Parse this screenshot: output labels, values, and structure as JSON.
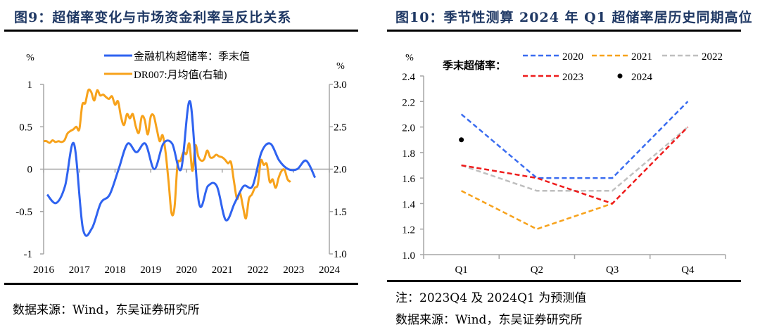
{
  "left": {
    "title": "图9：超储率变化与市场资金利率呈反比关系",
    "source": "数据来源：Wind，东吴证券研究所"
  },
  "right": {
    "title": "图10：季节性测算 2024 年 Q1 超储率居历史同期高位",
    "note": "注：2023Q4 及 2024Q1 为预测值",
    "source": "数据来源：Wind，东吴证券研究所"
  },
  "chart_data": [
    {
      "type": "line",
      "title": "超储率变化与市场资金利率呈反比关系",
      "ylabel": "%",
      "y2label": "%",
      "ylim": [
        -1,
        1
      ],
      "y2lim": [
        1.0,
        3.0
      ],
      "xlim": [
        2016,
        2024
      ],
      "yticks": [
        "1",
        "0.5",
        "0",
        "-0.5",
        "-1"
      ],
      "y2ticks": [
        "3.0",
        "2.5",
        "2.0",
        "1.5",
        "1.0"
      ],
      "xticks": [
        "2016",
        "2017",
        "2018",
        "2019",
        "2020",
        "2021",
        "2022",
        "2023",
        "2024"
      ],
      "grid": false,
      "legend": "top-center",
      "series": [
        {
          "name": "金融机构超储率：季末值",
          "axis": "left",
          "color": "#2f63f0",
          "x": [
            2016.1,
            2016.35,
            2016.6,
            2016.85,
            2017.1,
            2017.35,
            2017.6,
            2017.85,
            2018.1,
            2018.35,
            2018.6,
            2018.85,
            2019.1,
            2019.35,
            2019.6,
            2019.85,
            2020.1,
            2020.35,
            2020.6,
            2020.85,
            2021.1,
            2021.35,
            2021.6,
            2021.85,
            2022.1,
            2022.35,
            2022.6,
            2022.85,
            2023.1,
            2023.35,
            2023.6
          ],
          "values": [
            -0.3,
            -0.4,
            -0.2,
            0.3,
            -0.7,
            -0.7,
            -0.4,
            -0.3,
            0.0,
            0.3,
            0.2,
            0.3,
            0.0,
            0.3,
            0.3,
            0.0,
            0.8,
            -0.4,
            -0.2,
            -0.2,
            -0.6,
            -0.4,
            -0.2,
            -0.2,
            0.2,
            0.3,
            0.1,
            0.0,
            0.0,
            0.1,
            -0.1
          ]
        },
        {
          "name": "DR007:月均值(右轴)",
          "axis": "right",
          "color": "#f7a21b",
          "x_start": 2016.0,
          "x_step": 0.0833,
          "values": [
            2.33,
            2.33,
            2.31,
            2.34,
            2.32,
            2.33,
            2.32,
            2.34,
            2.42,
            2.45,
            2.47,
            2.5,
            2.47,
            2.76,
            2.78,
            2.93,
            2.91,
            2.81,
            2.93,
            2.87,
            2.88,
            2.85,
            2.83,
            2.86,
            2.76,
            2.8,
            2.62,
            2.52,
            2.65,
            2.6,
            2.65,
            2.5,
            2.43,
            2.62,
            2.58,
            2.41,
            2.62,
            2.63,
            2.48,
            2.33,
            2.4,
            2.2,
            1.85,
            1.48,
            1.55,
            2.05,
            2.1,
            2.2,
            2.18,
            2.3,
            1.98,
            2.28,
            2.15,
            2.1,
            2.12,
            2.22,
            2.14,
            2.14,
            2.17,
            2.15,
            2.14,
            2.11,
            2.07,
            2.08,
            1.85,
            1.65,
            1.72,
            1.56,
            1.42,
            1.65,
            1.7,
            1.78,
            1.82,
            2.1,
            2.05,
            2.06,
            1.85,
            1.88,
            1.78,
            1.9,
            1.98,
            1.99,
            1.88,
            1.85
          ]
        }
      ]
    },
    {
      "type": "line",
      "title": "季节性测算 2024 年 Q1 超储率居历史同期高位",
      "ylabel": "%",
      "ylim": [
        1.0,
        2.4
      ],
      "yticks": [
        "2.4",
        "2.2",
        "2.0",
        "1.8",
        "1.6",
        "1.4",
        "1.2",
        "1.0"
      ],
      "categories": [
        "Q1",
        "Q2",
        "Q3",
        "Q4"
      ],
      "grid": false,
      "legend": "top",
      "legend_title": "季末超储率：",
      "series": [
        {
          "name": "2020",
          "style": "dashed",
          "color": "#3a6cf0",
          "values": [
            2.1,
            1.6,
            1.6,
            2.2
          ]
        },
        {
          "name": "2021",
          "style": "dashed",
          "color": "#f7a21b",
          "values": [
            1.5,
            1.2,
            1.4,
            null
          ]
        },
        {
          "name": "2022",
          "style": "dashed",
          "color": "#bfbfbf",
          "values": [
            1.7,
            1.5,
            1.5,
            2.0
          ]
        },
        {
          "name": "2023",
          "style": "dashed",
          "color": "#ee1c1c",
          "values": [
            1.7,
            1.6,
            1.4,
            2.0
          ]
        },
        {
          "name": "2024",
          "style": "marker",
          "color": "#000000",
          "values": [
            1.9,
            null,
            null,
            null
          ]
        }
      ]
    }
  ]
}
